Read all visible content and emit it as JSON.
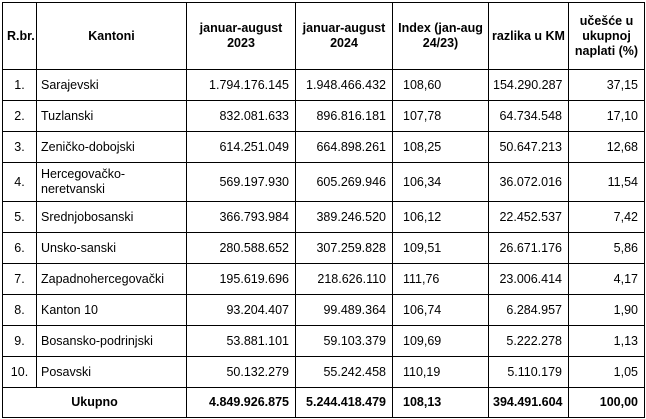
{
  "headers": {
    "rbr": "R.br.",
    "kantoni": "Kantoni",
    "jan_aug_2023": "januar-august 2023",
    "jan_aug_2024": "januar-august 2024",
    "index": "Index (jan-aug 24/23)",
    "razlika": "razlika u KM",
    "ucesce": "učešće u ukupnoj naplati (%)"
  },
  "rows": [
    {
      "rbr": "1.",
      "kanton": "Sarajevski",
      "v2023": "1.794.176.145",
      "v2024": "1.948.466.432",
      "index": "108,60",
      "razlika": "154.290.287",
      "ucesce": "37,15"
    },
    {
      "rbr": "2.",
      "kanton": "Tuzlanski",
      "v2023": "832.081.633",
      "v2024": "896.816.181",
      "index": "107,78",
      "razlika": "64.734.548",
      "ucesce": "17,10"
    },
    {
      "rbr": "3.",
      "kanton": "Zeničko-dobojski",
      "v2023": "614.251.049",
      "v2024": "664.898.261",
      "index": "108,25",
      "razlika": "50.647.213",
      "ucesce": "12,68"
    },
    {
      "rbr": "4.",
      "kanton": "Hercegovačko-neretvanski",
      "v2023": "569.197.930",
      "v2024": "605.269.946",
      "index": "106,34",
      "razlika": "36.072.016",
      "ucesce": "11,54"
    },
    {
      "rbr": "5.",
      "kanton": "Srednjobosanski",
      "v2023": "366.793.984",
      "v2024": "389.246.520",
      "index": "106,12",
      "razlika": "22.452.537",
      "ucesce": "7,42"
    },
    {
      "rbr": "6.",
      "kanton": "Unsko-sanski",
      "v2023": "280.588.652",
      "v2024": "307.259.828",
      "index": "109,51",
      "razlika": "26.671.176",
      "ucesce": "5,86"
    },
    {
      "rbr": "7.",
      "kanton": "Zapadnohercegovački",
      "v2023": "195.619.696",
      "v2024": "218.626.110",
      "index": "111,76",
      "razlika": "23.006.414",
      "ucesce": "4,17"
    },
    {
      "rbr": "8.",
      "kanton": "Kanton 10",
      "v2023": "93.204.407",
      "v2024": "99.489.364",
      "index": "106,74",
      "razlika": "6.284.957",
      "ucesce": "1,90"
    },
    {
      "rbr": "9.",
      "kanton": "Bosansko-podrinjski",
      "v2023": "53.881.101",
      "v2024": "59.103.379",
      "index": "109,69",
      "razlika": "5.222.278",
      "ucesce": "1,13"
    },
    {
      "rbr": "10.",
      "kanton": "Posavski",
      "v2023": "50.132.279",
      "v2024": "55.242.458",
      "index": "110,19",
      "razlika": "5.110.179",
      "ucesce": "1,05"
    }
  ],
  "total": {
    "label": "Ukupno",
    "v2023": "4.849.926.875",
    "v2024": "5.244.418.479",
    "index": "108,13",
    "razlika": "394.491.604",
    "ucesce": "100,00"
  }
}
